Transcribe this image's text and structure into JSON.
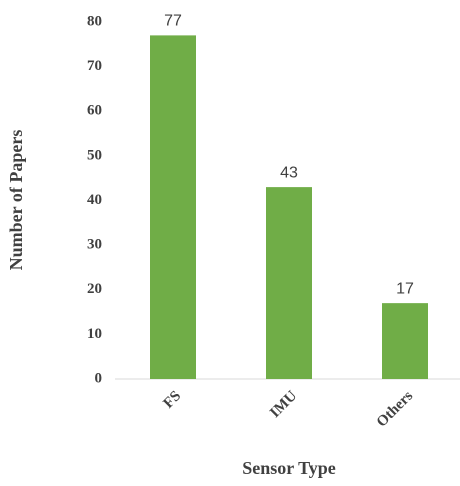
{
  "chart_data": {
    "type": "bar",
    "x_label": "Sensor Type",
    "y_label": "Number of Papers",
    "categories": [
      "FS",
      "IMU",
      "Others"
    ],
    "values": [
      77,
      43,
      17
    ],
    "color": "#70ad47",
    "ylim": [
      0,
      80
    ],
    "yticks": [
      0,
      10,
      20,
      30,
      40,
      50,
      60,
      70,
      80
    ]
  }
}
